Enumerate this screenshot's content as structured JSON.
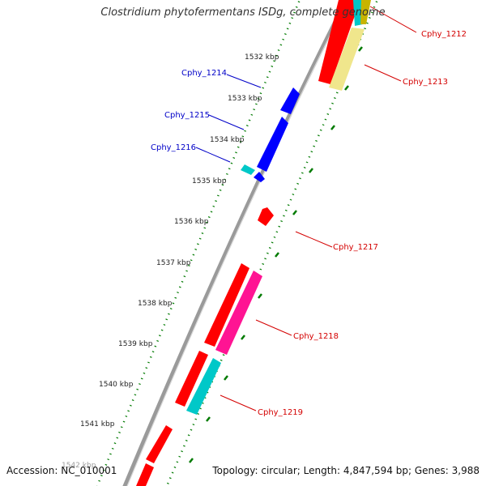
{
  "title": "Clostridium phytofermentans ISDg, complete genome",
  "accession": "Accession: NC_010001",
  "summary": "Topology: circular; Length: 4,847,594 bp; Genes: 3,988",
  "ticks": [
    {
      "label": "1532 kbp"
    },
    {
      "label": "1533 kbp"
    },
    {
      "label": "1534 kbp"
    },
    {
      "label": "1535 kbp"
    },
    {
      "label": "1536 kbp"
    },
    {
      "label": "1537 kbp"
    },
    {
      "label": "1538 kbp"
    },
    {
      "label": "1539 kbp"
    },
    {
      "label": "1540 kbp"
    },
    {
      "label": "1541 kbp"
    },
    {
      "label": "1542 kbp"
    }
  ],
  "gene_labels": [
    {
      "text": "Cphy_1212",
      "strand": "forward",
      "color": "#d40000"
    },
    {
      "text": "Cphy_1213",
      "strand": "forward",
      "color": "#d40000"
    },
    {
      "text": "Cphy_1214",
      "strand": "reverse",
      "color": "#0000c8"
    },
    {
      "text": "Cphy_1215",
      "strand": "reverse",
      "color": "#0000c8"
    },
    {
      "text": "Cphy_1216",
      "strand": "reverse",
      "color": "#0000c8"
    },
    {
      "text": "Cphy_1217",
      "strand": "forward",
      "color": "#d40000"
    },
    {
      "text": "Cphy_1218",
      "strand": "forward",
      "color": "#d40000"
    },
    {
      "text": "Cphy_1219",
      "strand": "forward",
      "color": "#d40000"
    }
  ],
  "colors": {
    "backbone": "#9a9a9a",
    "cds_red": "#ff0000",
    "cds_blue": "#0000ff",
    "rrna_cyan": "#00c8c8",
    "magenta": "#ff1493",
    "pale_yellow": "#f0e68c",
    "dot_green": "#007a00"
  }
}
